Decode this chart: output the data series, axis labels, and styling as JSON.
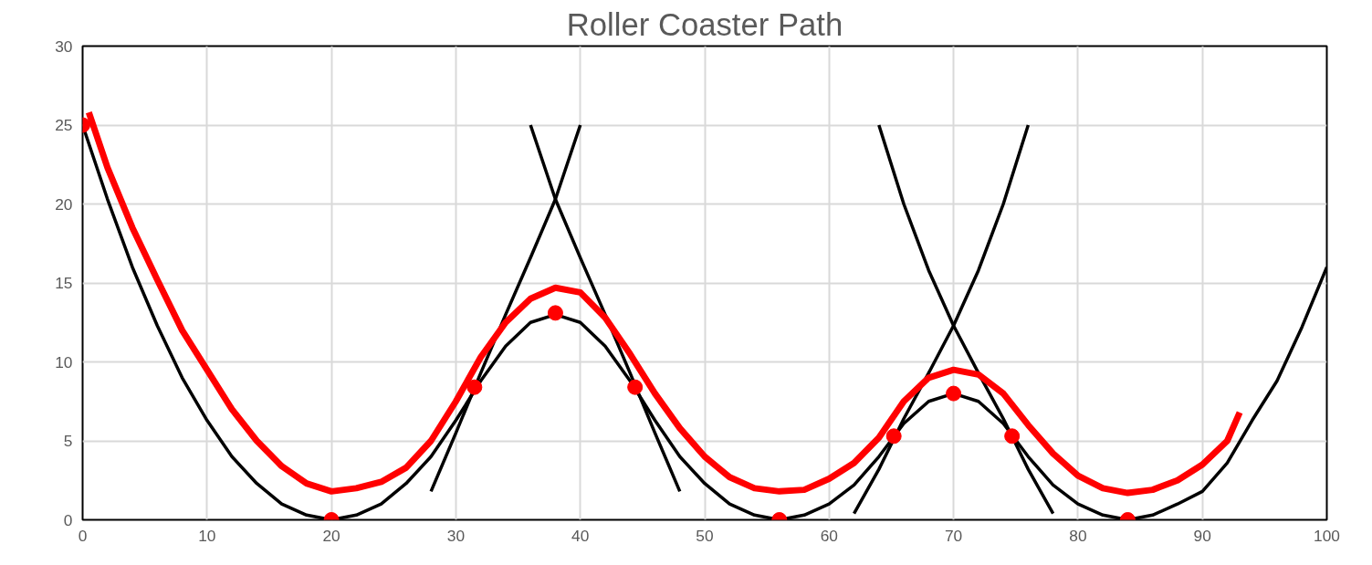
{
  "chart_data": {
    "type": "line",
    "title": "Roller Coaster Path",
    "xlim": [
      0,
      100
    ],
    "ylim": [
      0,
      30
    ],
    "xticks": [
      0,
      10,
      20,
      30,
      40,
      50,
      60,
      70,
      80,
      90,
      100
    ],
    "yticks": [
      0,
      5,
      10,
      15,
      20,
      25,
      30
    ],
    "grid": true,
    "line_style": "solid",
    "series": [
      {
        "color": "#000000",
        "x": [
          0,
          2,
          4,
          6,
          8,
          10,
          12,
          14,
          16,
          18,
          20,
          22,
          24,
          26,
          28,
          30,
          32,
          34,
          36,
          38,
          40,
          42,
          44,
          46,
          48,
          50,
          52,
          54,
          56,
          58,
          60,
          62,
          64,
          66,
          68,
          70,
          72,
          74,
          76,
          78,
          80,
          82,
          84,
          86,
          88,
          90,
          92,
          94,
          96,
          98,
          100
        ],
        "values": [
          25,
          20.3,
          16,
          12.3,
          9,
          6.3,
          4,
          2.3,
          1,
          0.3,
          0,
          0.3,
          1,
          2.3,
          4,
          6.3,
          8.8,
          11,
          12.5,
          13,
          12.5,
          11,
          8.8,
          6.3,
          4,
          2.3,
          1,
          0.3,
          0,
          0.3,
          1,
          2.2,
          4,
          6.1,
          7.5,
          8,
          7.5,
          6.1,
          4,
          2.2,
          1,
          0.3,
          0,
          0.3,
          1,
          1.8,
          3.6,
          6.3,
          8.8,
          12.2,
          16
        ]
      },
      {
        "color": "#000000",
        "x": [
          28,
          30,
          32,
          34,
          36,
          38,
          40
        ],
        "values": [
          1.8,
          5.5,
          9.3,
          13,
          16.6,
          20.3,
          25
        ]
      },
      {
        "color": "#000000",
        "x": [
          36,
          38,
          40,
          42,
          44,
          46,
          48
        ],
        "values": [
          25,
          20.3,
          16.6,
          13,
          9.3,
          5.5,
          1.8
        ]
      },
      {
        "color": "#000000",
        "x": [
          62,
          64,
          66,
          68,
          70,
          72,
          74,
          76
        ],
        "values": [
          0.4,
          3.2,
          6.4,
          9.3,
          12.3,
          15.8,
          20,
          25
        ]
      },
      {
        "color": "#000000",
        "x": [
          64,
          66,
          68,
          70,
          72,
          74,
          76,
          78
        ],
        "values": [
          25,
          20,
          15.8,
          12.3,
          9.3,
          6.4,
          3.2,
          0.4
        ]
      },
      {
        "color": "#ff0000",
        "x": [
          0.5,
          2,
          4,
          6,
          8,
          10,
          12,
          14,
          16,
          18,
          20,
          22,
          24,
          26,
          28,
          30,
          32,
          34,
          36,
          38,
          40,
          42,
          44,
          46,
          48,
          50,
          52,
          54,
          56,
          58,
          60,
          62,
          64,
          66,
          68,
          70,
          72,
          74,
          76,
          78,
          80,
          82,
          84,
          86,
          88,
          90,
          92,
          93
        ],
        "values": [
          25.8,
          22.3,
          18.5,
          15.2,
          12,
          9.5,
          7,
          5,
          3.4,
          2.3,
          1.8,
          2,
          2.4,
          3.3,
          5,
          7.5,
          10.3,
          12.5,
          14,
          14.7,
          14.4,
          12.8,
          10.5,
          8,
          5.8,
          4,
          2.7,
          2,
          1.8,
          1.9,
          2.6,
          3.6,
          5.2,
          7.5,
          9,
          9.5,
          9.2,
          8,
          6,
          4.2,
          2.8,
          2,
          1.7,
          1.9,
          2.5,
          3.5,
          5,
          6.8
        ]
      },
      {
        "type": "scatter",
        "marker": "circle",
        "color": "#ff0000",
        "x": [
          0,
          20,
          38,
          56,
          70,
          84
        ],
        "values": [
          25,
          0,
          13.1,
          0,
          8,
          0
        ]
      },
      {
        "type": "scatter",
        "marker": "circle",
        "color": "#ff0000",
        "x": [
          31.5,
          44.4,
          65.2,
          74.7
        ],
        "values": [
          8.4,
          8.4,
          5.3,
          5.3
        ]
      }
    ]
  }
}
